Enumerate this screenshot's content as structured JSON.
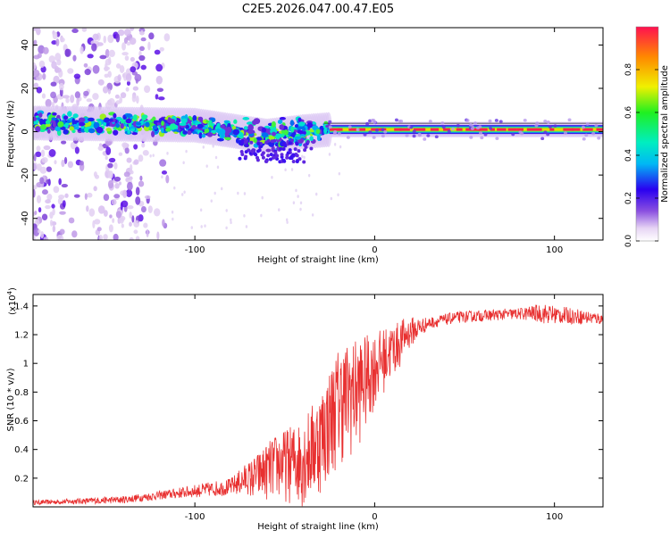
{
  "title": "C2E5.2026.047.00.47.E05",
  "chart_data": [
    {
      "type": "heatmap",
      "name": "spectrogram",
      "xlabel": "Height of straight line (km)",
      "ylabel": "Frequency (Hz)",
      "xlim": [
        -190,
        127
      ],
      "ylim": [
        -50,
        48
      ],
      "xticks": [
        -100,
        0,
        100
      ],
      "xtick_labels": [
        "-100",
        "0",
        "100"
      ],
      "yticks": [
        -40,
        -20,
        0,
        20,
        40
      ],
      "ytick_labels": [
        "-40",
        "-20",
        "0",
        "20",
        "40"
      ],
      "colorbar": {
        "label": "Normalized spectral amplitude",
        "range": [
          0,
          1
        ],
        "ticks": [
          0.0,
          0.2,
          0.4,
          0.6,
          0.8
        ],
        "tick_labels": [
          "0.0",
          "0.2",
          "0.4",
          "0.6",
          "0.8"
        ]
      },
      "band_center_hz": [
        {
          "x": -190,
          "y": 4
        },
        {
          "x": -100,
          "y": 3
        },
        {
          "x": -60,
          "y": -2
        },
        {
          "x": -40,
          "y": 0
        },
        {
          "x": -25,
          "y": 1
        },
        {
          "x": 127,
          "y": 1
        }
      ],
      "scatter_region_x": [
        -190,
        -125
      ],
      "saturated_segment_x": [
        -25,
        127
      ]
    },
    {
      "type": "line",
      "name": "snr",
      "xlabel": "Height of straight line (km)",
      "ylabel": "SNR (10 * v/v)",
      "multiplier_label": "(x10",
      "multiplier_exp": "4",
      "multiplier_close": ")",
      "xlim": [
        -190,
        127
      ],
      "ylim": [
        0,
        1.48
      ],
      "xticks": [
        -100,
        0,
        100
      ],
      "xtick_labels": [
        "-100",
        "0",
        "100"
      ],
      "yticks": [
        0.2,
        0.4,
        0.6,
        0.8,
        1.0,
        1.2,
        1.4
      ],
      "ytick_labels": [
        "0.2",
        "0.4",
        "0.6",
        "0.8",
        "1",
        "1.2",
        "1.4"
      ],
      "series_color": "#e83030",
      "envelope": [
        {
          "x": -190,
          "y": 0.03
        },
        {
          "x": -140,
          "y": 0.05
        },
        {
          "x": -120,
          "y": 0.08
        },
        {
          "x": -100,
          "y": 0.11
        },
        {
          "x": -80,
          "y": 0.14
        },
        {
          "x": -65,
          "y": 0.24
        },
        {
          "x": -55,
          "y": 0.32
        },
        {
          "x": -40,
          "y": 0.36
        },
        {
          "x": -30,
          "y": 0.52
        },
        {
          "x": -20,
          "y": 0.78
        },
        {
          "x": -10,
          "y": 0.85
        },
        {
          "x": 0,
          "y": 1.0
        },
        {
          "x": 10,
          "y": 1.12
        },
        {
          "x": 20,
          "y": 1.22
        },
        {
          "x": 30,
          "y": 1.28
        },
        {
          "x": 45,
          "y": 1.32
        },
        {
          "x": 70,
          "y": 1.34
        },
        {
          "x": 90,
          "y": 1.35
        },
        {
          "x": 110,
          "y": 1.33
        },
        {
          "x": 127,
          "y": 1.31
        }
      ],
      "noise": [
        {
          "x": -190,
          "amp": 0.015
        },
        {
          "x": -120,
          "amp": 0.03
        },
        {
          "x": -80,
          "amp": 0.06
        },
        {
          "x": -60,
          "amp": 0.18
        },
        {
          "x": -40,
          "amp": 0.28
        },
        {
          "x": -20,
          "amp": 0.38
        },
        {
          "x": -10,
          "amp": 0.36
        },
        {
          "x": 0,
          "amp": 0.24
        },
        {
          "x": 15,
          "amp": 0.14
        },
        {
          "x": 30,
          "amp": 0.04
        },
        {
          "x": 80,
          "amp": 0.04
        },
        {
          "x": 95,
          "amp": 0.07
        },
        {
          "x": 127,
          "amp": 0.04
        }
      ]
    }
  ]
}
